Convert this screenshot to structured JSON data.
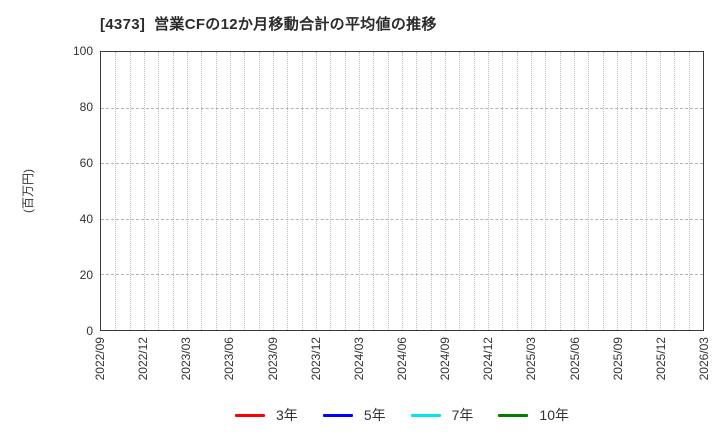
{
  "chart": {
    "title": "[4373]  営業CFの12か月移動合計の平均値の推移",
    "ylabel": "(百万円)"
  },
  "chart_data": {
    "type": "line",
    "title": "[4373]  営業CFの12か月移動合計の平均値の推移",
    "xlabel": "",
    "ylabel": "(百万円)",
    "ylim": [
      0,
      100
    ],
    "y_ticks": [
      0,
      20,
      40,
      60,
      80,
      100
    ],
    "y_gridlines": [
      20,
      40,
      60,
      80
    ],
    "x_tick_labels": [
      "2022/09",
      "2022/12",
      "2023/03",
      "2023/06",
      "2023/09",
      "2023/12",
      "2024/03",
      "2024/06",
      "2024/09",
      "2024/12",
      "2025/03",
      "2025/06",
      "2025/09",
      "2025/12",
      "2026/03"
    ],
    "months_per_tick": 3,
    "grid": true,
    "legend_position": "bottom-center",
    "series": [
      {
        "name": "3年",
        "color": "#ff0000",
        "values": []
      },
      {
        "name": "5年",
        "color": "#0000ff",
        "values": []
      },
      {
        "name": "7年",
        "color": "#00e5ee",
        "values": []
      },
      {
        "name": "10年",
        "color": "#008000",
        "values": []
      }
    ]
  }
}
